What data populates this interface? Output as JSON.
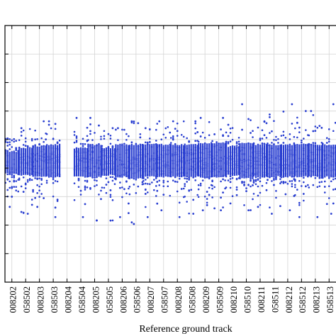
{
  "chart_data": {
    "type": "scatter",
    "title": "",
    "xlabel": "Reference ground track",
    "ylabel": "",
    "grid": true,
    "legend": "none",
    "y_tick_count": 8,
    "series_color": "#2a3fd0",
    "categories": [
      "008202",
      "058502",
      "008203",
      "058503",
      "008204",
      "058504",
      "008205",
      "058505",
      "008206",
      "058506",
      "008207",
      "058507",
      "008208",
      "058508",
      "008209",
      "058509",
      "008210",
      "058510",
      "008211",
      "058511",
      "008212",
      "058512",
      "008213",
      "058513"
    ],
    "clusters": [
      {
        "track": "008202",
        "present": true,
        "core": [
          -0.3,
          0.3
        ],
        "extent": [
          -1.3,
          0.7
        ]
      },
      {
        "track": "058502",
        "present": true,
        "core": [
          -0.35,
          0.4
        ],
        "extent": [
          -1.5,
          1.0
        ]
      },
      {
        "track": "008203",
        "present": true,
        "core": [
          -0.4,
          0.45
        ],
        "extent": [
          -1.3,
          1.2
        ]
      },
      {
        "track": "058503",
        "present": true,
        "core": [
          -0.4,
          0.5
        ],
        "extent": [
          -1.6,
          1.2
        ]
      },
      {
        "track": "008204",
        "present": false,
        "core": [
          0,
          0
        ],
        "extent": [
          0,
          0
        ]
      },
      {
        "track": "058504",
        "present": true,
        "core": [
          -0.4,
          0.4
        ],
        "extent": [
          -1.6,
          1.3
        ]
      },
      {
        "track": "008205",
        "present": true,
        "core": [
          -0.4,
          0.5
        ],
        "extent": [
          -1.7,
          1.3
        ]
      },
      {
        "track": "058505",
        "present": true,
        "core": [
          -0.35,
          0.4
        ],
        "extent": [
          -1.7,
          1.0
        ]
      },
      {
        "track": "008206",
        "present": true,
        "core": [
          -0.4,
          0.5
        ],
        "extent": [
          -1.6,
          1.0
        ]
      },
      {
        "track": "058506",
        "present": true,
        "core": [
          -0.45,
          0.5
        ],
        "extent": [
          -1.8,
          1.2
        ]
      },
      {
        "track": "008207",
        "present": true,
        "core": [
          -0.4,
          0.5
        ],
        "extent": [
          -1.6,
          1.0
        ]
      },
      {
        "track": "058507",
        "present": true,
        "core": [
          -0.4,
          0.5
        ],
        "extent": [
          -1.4,
          1.2
        ]
      },
      {
        "track": "008208",
        "present": true,
        "core": [
          -0.4,
          0.5
        ],
        "extent": [
          -1.6,
          1.2
        ]
      },
      {
        "track": "058508",
        "present": true,
        "core": [
          -0.4,
          0.5
        ],
        "extent": [
          -1.5,
          1.2
        ]
      },
      {
        "track": "008209",
        "present": true,
        "core": [
          -0.4,
          0.55
        ],
        "extent": [
          -1.4,
          1.3
        ]
      },
      {
        "track": "058509",
        "present": true,
        "core": [
          -0.4,
          0.55
        ],
        "extent": [
          -1.4,
          1.3
        ]
      },
      {
        "track": "008210",
        "present": true,
        "core": [
          -0.35,
          0.45
        ],
        "extent": [
          -1.2,
          1.1
        ]
      },
      {
        "track": "058510",
        "present": true,
        "core": [
          -0.45,
          0.55
        ],
        "extent": [
          -1.4,
          1.7
        ]
      },
      {
        "track": "008211",
        "present": true,
        "core": [
          -0.4,
          0.5
        ],
        "extent": [
          -1.3,
          1.2
        ]
      },
      {
        "track": "058511",
        "present": true,
        "core": [
          -0.4,
          0.5
        ],
        "extent": [
          -1.5,
          1.4
        ]
      },
      {
        "track": "008212",
        "present": true,
        "core": [
          -0.4,
          0.5
        ],
        "extent": [
          -1.4,
          1.7
        ]
      },
      {
        "track": "058512",
        "present": true,
        "core": [
          -0.4,
          0.5
        ],
        "extent": [
          -1.6,
          1.5
        ]
      },
      {
        "track": "008213",
        "present": true,
        "core": [
          -0.4,
          0.5
        ],
        "extent": [
          -1.6,
          1.5
        ]
      },
      {
        "track": "058513",
        "present": true,
        "core": [
          -0.4,
          0.5
        ],
        "extent": [
          -1.5,
          1.7
        ]
      }
    ],
    "ylim": [
      -3.5,
      4.0
    ]
  }
}
